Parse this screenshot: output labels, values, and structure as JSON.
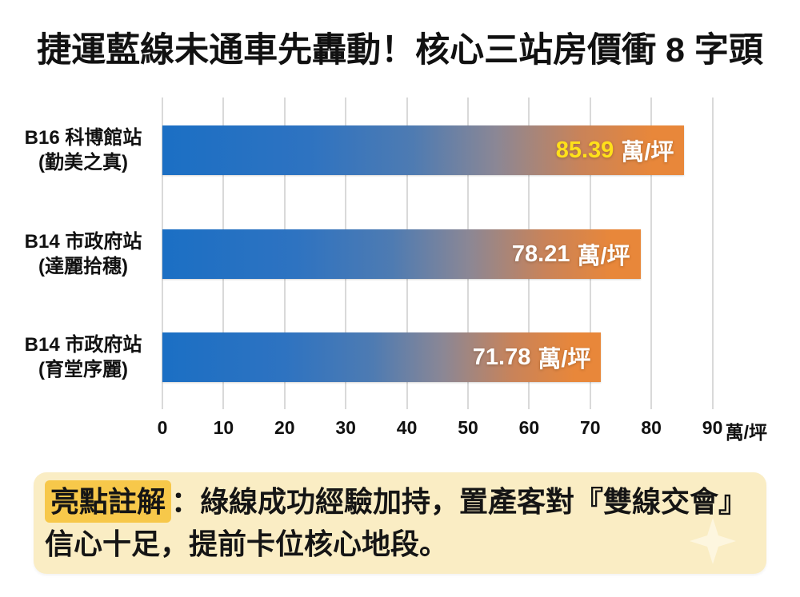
{
  "title": "捷運藍線未通車先轟動！核心三站房價衝 8 字頭",
  "chart_data": {
    "type": "bar",
    "orientation": "horizontal",
    "title": "捷運藍線未通車先轟動！核心三站房價衝 8 字頭",
    "categories": [
      "B16 科博館站 (勤美之真)",
      "B14 市政府站 (達麗拾穗)",
      "B14 市政府站 (育堂序麗)"
    ],
    "values": [
      85.39,
      78.21,
      71.78
    ],
    "unit": "萬/坪",
    "xlabel": "萬/坪",
    "xlim": [
      0,
      90
    ],
    "xticks": [
      0,
      10,
      20,
      30,
      40,
      50,
      60,
      70,
      80,
      90
    ],
    "grid": true,
    "legend": false,
    "bar_gradient": [
      "#1B6FC4",
      "#E8873A"
    ],
    "bars": [
      {
        "label_line1": "B16 科博館站",
        "label_line2": "(勤美之真)",
        "value": 85.39,
        "value_text": "85.39",
        "unit": "萬/坪",
        "value_color": "#FFE01A"
      },
      {
        "label_line1": "B14 市政府站",
        "label_line2": "(達麗拾穗)",
        "value": 78.21,
        "value_text": "78.21",
        "unit": "萬/坪",
        "value_color": "#FFFFFF"
      },
      {
        "label_line1": "B14 市政府站",
        "label_line2": "(育堂序麗)",
        "value": 71.78,
        "value_text": "71.78",
        "unit": "萬/坪",
        "value_color": "#FFFFFF"
      }
    ]
  },
  "annotation": {
    "highlight_label": "亮點註解",
    "line1_rest": "：綠線成功經驗加持，置產客對『雙線交會』",
    "line2": "信心十足，提前卡位核心地段。",
    "box_color": "#FAEDC4",
    "highlight_color": "#F7C84A"
  }
}
